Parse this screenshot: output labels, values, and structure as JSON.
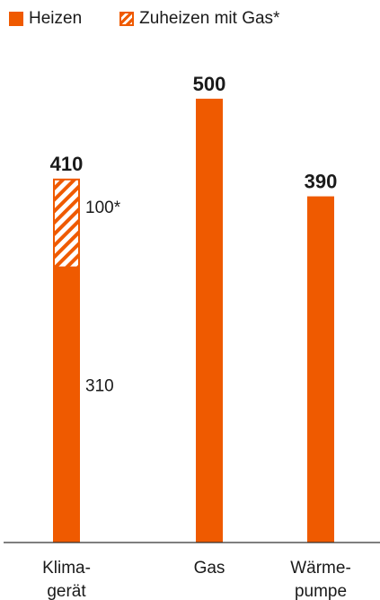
{
  "legend": {
    "heizen": "Heizen",
    "zuheizen": "Zuheizen mit Gas*"
  },
  "colors": {
    "accent": "#ef5a00",
    "axis": "#333333",
    "text": "#1a1a1a"
  },
  "chart_data": {
    "type": "bar",
    "stacked": true,
    "categories": [
      [
        "Klima-",
        "gerät"
      ],
      [
        "Gas"
      ],
      [
        "Wärme-",
        "pumpe"
      ]
    ],
    "series": [
      {
        "name": "Heizen",
        "values": [
          310,
          500,
          390
        ],
        "style": "solid"
      },
      {
        "name": "Zuheizen mit Gas*",
        "values": [
          100,
          0,
          0
        ],
        "style": "hatched"
      }
    ],
    "totals": [
      410,
      500,
      390
    ],
    "segment_labels": [
      {
        "category": 0,
        "series": 0,
        "text": "310"
      },
      {
        "category": 0,
        "series": 1,
        "text": "100*"
      }
    ],
    "ylim": [
      0,
      510
    ],
    "grid": false,
    "legend_position": "top-left"
  }
}
